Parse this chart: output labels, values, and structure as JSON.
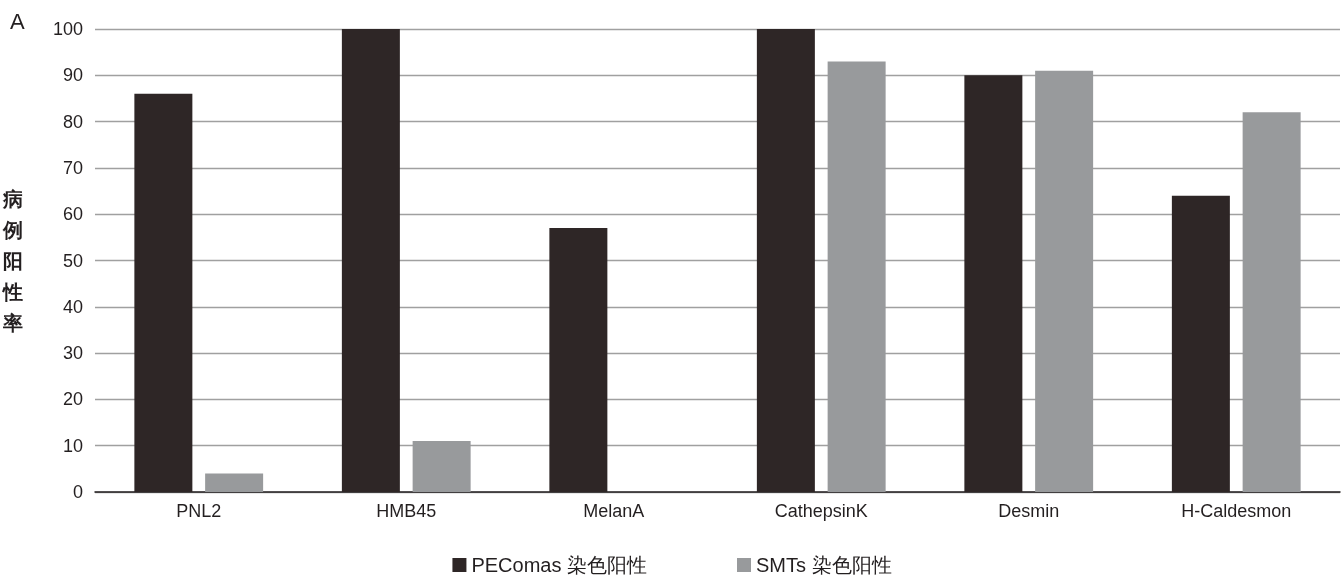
{
  "chart_data": {
    "type": "bar",
    "ylabel": "病例阳性率",
    "annotations": [
      "A"
    ],
    "categories": [
      "PNL2",
      "HMB45",
      "MelanA",
      "CathepsinK",
      "Desmin",
      "H-Caldesmon"
    ],
    "series": [
      {
        "name": "PEComas 染色阳性",
        "color": "#2e2626",
        "values": [
          86,
          100,
          57,
          100,
          90,
          64
        ]
      },
      {
        "name": "SMTs 染色阳性",
        "color": "#989a9c",
        "values": [
          4,
          11,
          0,
          93,
          91,
          82
        ]
      }
    ],
    "ylim": [
      0,
      100
    ],
    "yticks": [
      0,
      10,
      20,
      30,
      40,
      50,
      60,
      70,
      80,
      90,
      100
    ],
    "grid": "y",
    "legend": "bottom"
  }
}
